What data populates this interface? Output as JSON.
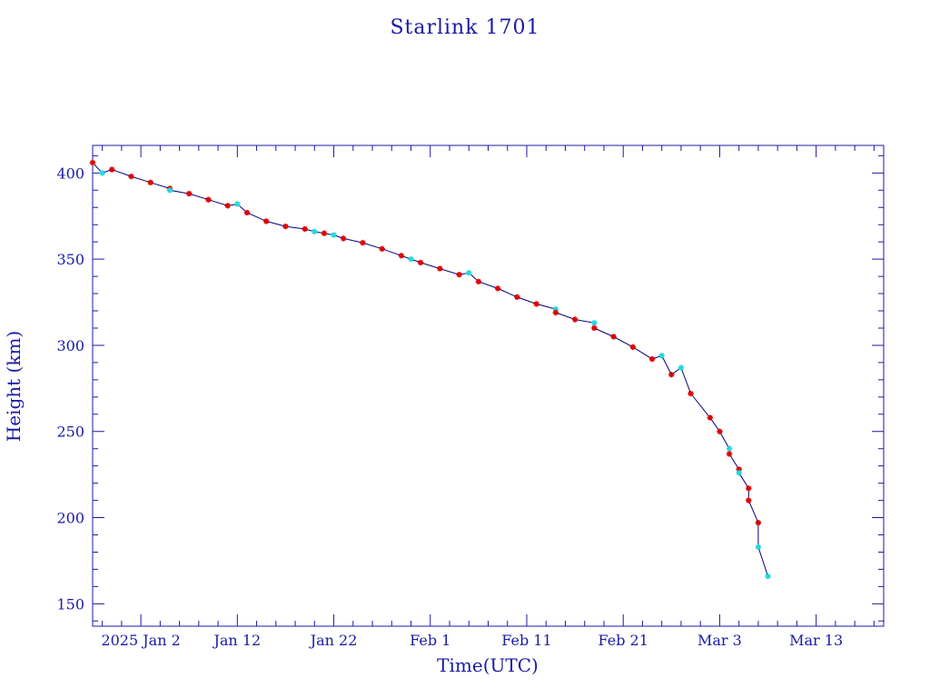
{
  "colors": {
    "axis": "#1a1aa6",
    "line": "#000080",
    "marker_primary": "#e00000",
    "marker_secondary": "#22d8e0",
    "background": "#ffffff"
  },
  "chart_data": {
    "type": "line",
    "title": "Starlink 1701",
    "xlabel": "Time(UTC)",
    "ylabel": "Height (km)",
    "x_ticks": [
      "2025 Jan  2",
      "Jan 12",
      "Jan 22",
      "Feb  1",
      "Feb 11",
      "Feb 21",
      "Mar  3",
      "Mar 13"
    ],
    "y_ticks": [
      "150",
      "200",
      "250",
      "300",
      "350",
      "400"
    ],
    "x_range": [
      "2024-12-28",
      "2025-03-20"
    ],
    "ylim": [
      137,
      416
    ],
    "grid": false,
    "series": [
      {
        "marker": "red star",
        "points": [
          [
            "2024-12-28",
            406
          ],
          [
            "2024-12-30",
            402
          ],
          [
            "2025-01-01",
            398
          ],
          [
            "2025-01-03",
            394.5
          ],
          [
            "2025-01-05",
            391
          ],
          [
            "2025-01-07",
            388
          ],
          [
            "2025-01-09",
            384.5
          ],
          [
            "2025-01-11",
            381
          ],
          [
            "2025-01-13",
            377
          ],
          [
            "2025-01-15",
            372
          ],
          [
            "2025-01-17",
            369
          ],
          [
            "2025-01-19",
            367.5
          ],
          [
            "2025-01-21",
            365
          ],
          [
            "2025-01-23",
            362
          ],
          [
            "2025-01-25",
            359.5
          ],
          [
            "2025-01-27",
            356
          ],
          [
            "2025-01-29",
            352
          ],
          [
            "2025-01-31",
            348
          ],
          [
            "2025-02-02",
            344.5
          ],
          [
            "2025-02-04",
            341
          ],
          [
            "2025-02-06",
            337
          ],
          [
            "2025-02-08",
            333
          ],
          [
            "2025-02-10",
            328
          ],
          [
            "2025-02-12",
            324
          ],
          [
            "2025-02-14",
            319
          ],
          [
            "2025-02-16",
            315
          ],
          [
            "2025-02-18",
            310
          ],
          [
            "2025-02-20",
            305
          ],
          [
            "2025-02-22",
            299
          ],
          [
            "2025-02-24",
            292
          ],
          [
            "2025-02-26",
            283
          ],
          [
            "2025-02-28",
            272
          ],
          [
            "2025-03-02",
            258
          ],
          [
            "2025-03-03",
            250
          ],
          [
            "2025-03-04",
            237
          ],
          [
            "2025-03-05",
            228
          ],
          [
            "2025-03-06",
            217
          ],
          [
            "2025-03-06",
            210
          ],
          [
            "2025-03-07",
            197
          ]
        ]
      },
      {
        "marker": "cyan star",
        "points": [
          [
            "2024-12-29",
            400
          ],
          [
            "2025-01-05",
            390
          ],
          [
            "2025-01-12",
            382
          ],
          [
            "2025-01-20",
            366
          ],
          [
            "2025-01-22",
            364
          ],
          [
            "2025-01-30",
            350
          ],
          [
            "2025-02-05",
            342
          ],
          [
            "2025-02-14",
            321
          ],
          [
            "2025-02-18",
            313
          ],
          [
            "2025-02-25",
            294
          ],
          [
            "2025-02-27",
            287
          ],
          [
            "2025-03-04",
            240
          ],
          [
            "2025-03-05",
            226
          ],
          [
            "2025-03-07",
            183
          ],
          [
            "2025-03-08",
            166
          ]
        ]
      }
    ]
  }
}
